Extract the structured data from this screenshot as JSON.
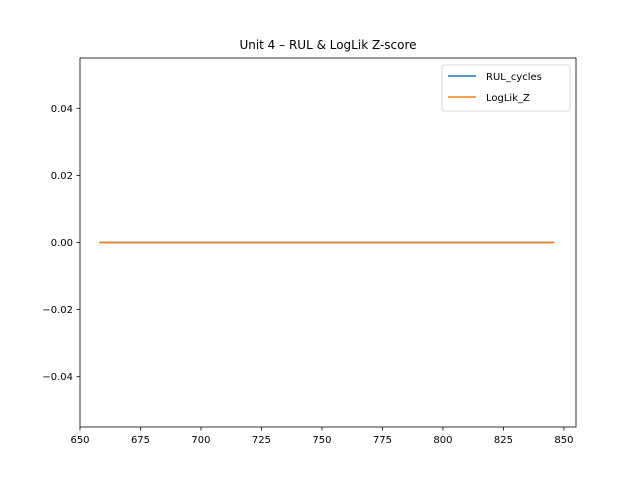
{
  "chart_data": {
    "type": "line",
    "title": "Unit 4  –  RUL & LogLik Z-score",
    "xlabel": "",
    "ylabel": "",
    "xlim": [
      650,
      855
    ],
    "ylim": [
      -0.055,
      0.055
    ],
    "x_ticks": [
      650,
      675,
      700,
      725,
      750,
      775,
      800,
      825,
      850
    ],
    "x_tick_labels": [
      "650",
      "675",
      "700",
      "725",
      "750",
      "775",
      "800",
      "825",
      "850"
    ],
    "y_ticks": [
      -0.04,
      -0.02,
      0.0,
      0.02,
      0.04
    ],
    "y_tick_labels": [
      "−0.04",
      "−0.02",
      "0.00",
      "0.02",
      "0.04"
    ],
    "grid": false,
    "legend_position": "upper-right",
    "series": [
      {
        "name": "RUL_cycles",
        "color": "#1f77b4",
        "x": [
          658,
          846
        ],
        "y": [
          0,
          0
        ]
      },
      {
        "name": "LogLik_Z",
        "color": "#ff7f0e",
        "x": [
          658,
          846
        ],
        "y": [
          0,
          0
        ]
      }
    ]
  }
}
